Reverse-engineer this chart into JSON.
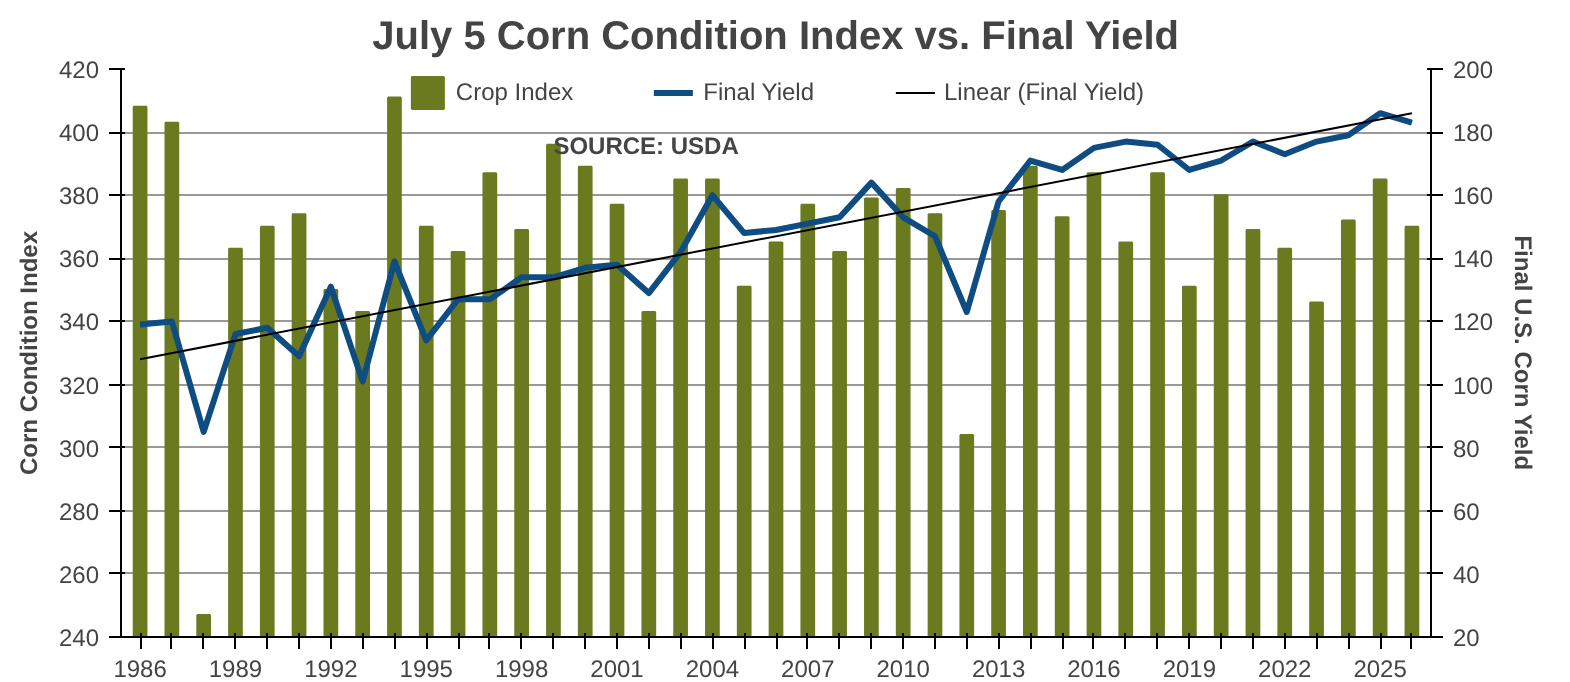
{
  "chart_data": {
    "type": "bar",
    "title": "July 5 Corn Condition Index vs. Final Yield",
    "annotations": [
      "SOURCE: USDA"
    ],
    "xlabel": null,
    "ylabel": "Corn Condition Index",
    "y2label": "Final U.S. Corn Yield",
    "x": [
      1986,
      1987,
      1988,
      1989,
      1990,
      1991,
      1992,
      1993,
      1994,
      1995,
      1996,
      1997,
      1998,
      1999,
      2000,
      2001,
      2002,
      2003,
      2004,
      2005,
      2006,
      2007,
      2008,
      2009,
      2010,
      2011,
      2012,
      2013,
      2014,
      2015,
      2016,
      2017,
      2018,
      2019,
      2020,
      2021,
      2022,
      2023,
      2024,
      2025,
      2026
    ],
    "series": [
      {
        "name": "Crop Index",
        "color": "#6b7a1f",
        "values": [
          408,
          403,
          247,
          363,
          370,
          374,
          350,
          343,
          411,
          370,
          362,
          387,
          369,
          396,
          389,
          377,
          343,
          385,
          385,
          351,
          365,
          377,
          362,
          379,
          382,
          374,
          304,
          375,
          389,
          373,
          387,
          365,
          387,
          351,
          380,
          369,
          363,
          346,
          372,
          385,
          370
        ]
      },
      {
        "name": "Final Yield",
        "type": "line",
        "axis": "y2",
        "color": "#0f4c81",
        "values": [
          119,
          120,
          85,
          116,
          118,
          109,
          131,
          101,
          139,
          114,
          127,
          127,
          134,
          134,
          137,
          138,
          129,
          142,
          160,
          148,
          149,
          151,
          153,
          164,
          153,
          147,
          123,
          158,
          171,
          168,
          175,
          177,
          176,
          168,
          171,
          177,
          173,
          177,
          179,
          186,
          183
        ]
      },
      {
        "name": "Linear (Final Yield)",
        "type": "line",
        "axis": "y2",
        "color": "#000000",
        "x": [
          1986,
          2026
        ],
        "values": [
          108,
          186
        ]
      }
    ],
    "xlim": [
      1985.4,
      2026.6
    ],
    "xticks": [
      1986,
      {
        "value": 1987,
        "label": null
      },
      {
        "value": 1988,
        "label": null
      },
      1989,
      {
        "value": 1990,
        "label": null
      },
      {
        "value": 1991,
        "label": null
      },
      1992,
      {
        "value": 1993,
        "label": null
      },
      {
        "value": 1994,
        "label": null
      },
      1995,
      {
        "value": 1996,
        "label": null
      },
      {
        "value": 1997,
        "label": null
      },
      1998,
      {
        "value": 1999,
        "label": null
      },
      {
        "value": 2000,
        "label": null
      },
      2001,
      {
        "value": 2002,
        "label": null
      },
      {
        "value": 2003,
        "label": null
      },
      2004,
      {
        "value": 2005,
        "label": null
      },
      {
        "value": 2006,
        "label": null
      },
      2007,
      {
        "value": 2008,
        "label": null
      },
      {
        "value": 2009,
        "label": null
      },
      2010,
      {
        "value": 2011,
        "label": null
      },
      {
        "value": 2012,
        "label": null
      },
      2013,
      {
        "value": 2014,
        "label": null
      },
      {
        "value": 2015,
        "label": null
      },
      2016,
      {
        "value": 2017,
        "label": null
      },
      {
        "value": 2018,
        "label": null
      },
      2019,
      {
        "value": 2020,
        "label": null
      },
      {
        "value": 2021,
        "label": null
      },
      2022,
      {
        "value": 2023,
        "label": null
      },
      {
        "value": 2024,
        "label": null
      },
      2025,
      {
        "value": 2026,
        "label": null
      }
    ],
    "ylim": [
      240,
      420
    ],
    "yticks": [
      240,
      260,
      280,
      300,
      320,
      340,
      360,
      380,
      400,
      420
    ],
    "y2lim": [
      20,
      200
    ],
    "y2ticks": [
      20,
      40,
      60,
      80,
      100,
      120,
      140,
      160,
      180,
      200
    ],
    "grid": "y",
    "legend": "top"
  }
}
